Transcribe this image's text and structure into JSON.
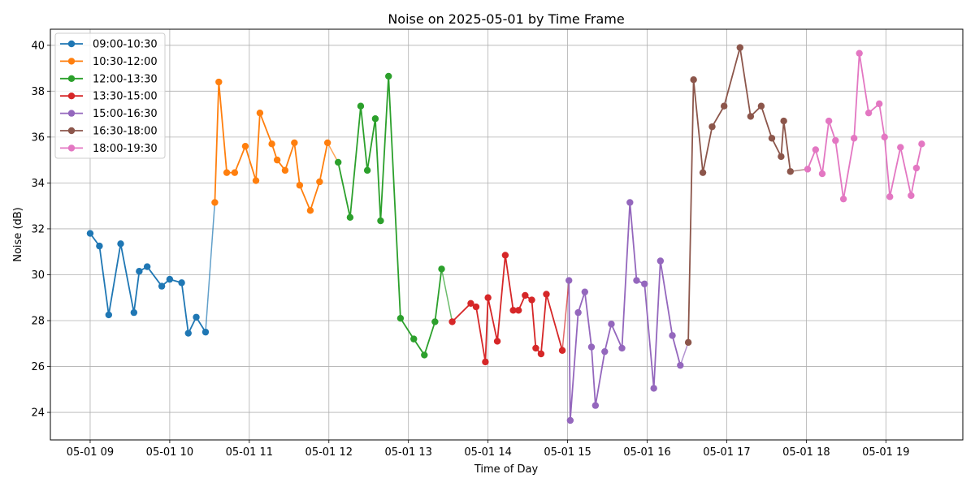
{
  "chart_data": {
    "type": "line",
    "title": "Noise on 2025-05-01 by Time Frame",
    "xlabel": "Time of Day",
    "ylabel": "Noise (dB)",
    "xlim": [
      "2025-05-01 08:30",
      "2025-05-01 19:58"
    ],
    "ylim": [
      22.8,
      40.7
    ],
    "x_ticks": [
      {
        "value": "2025-05-01 09:00",
        "label": "05-01 09"
      },
      {
        "value": "2025-05-01 10:00",
        "label": "05-01 10"
      },
      {
        "value": "2025-05-01 11:00",
        "label": "05-01 11"
      },
      {
        "value": "2025-05-01 12:00",
        "label": "05-01 12"
      },
      {
        "value": "2025-05-01 13:00",
        "label": "05-01 13"
      },
      {
        "value": "2025-05-01 14:00",
        "label": "05-01 14"
      },
      {
        "value": "2025-05-01 15:00",
        "label": "05-01 15"
      },
      {
        "value": "2025-05-01 16:00",
        "label": "05-01 16"
      },
      {
        "value": "2025-05-01 17:00",
        "label": "05-01 17"
      },
      {
        "value": "2025-05-01 18:00",
        "label": "05-01 18"
      },
      {
        "value": "2025-05-01 19:00",
        "label": "05-01 19"
      }
    ],
    "y_ticks": [
      24,
      26,
      28,
      30,
      32,
      34,
      36,
      38,
      40
    ],
    "grid": true,
    "legend_position": "top-left",
    "series": [
      {
        "name": "09:00-10:30",
        "color": "#1f77b4",
        "points": [
          [
            "09:00",
            31.8
          ],
          [
            "09:07",
            31.25
          ],
          [
            "09:14",
            28.25
          ],
          [
            "09:23",
            31.35
          ],
          [
            "09:33",
            28.35
          ],
          [
            "09:37",
            30.15
          ],
          [
            "09:43",
            30.35
          ],
          [
            "09:54",
            29.5
          ],
          [
            "10:00",
            29.8
          ],
          [
            "10:09",
            29.65
          ],
          [
            "10:14",
            27.45
          ],
          [
            "10:20",
            28.15
          ],
          [
            "10:27",
            27.5
          ]
        ]
      },
      {
        "name": "10:30-12:00",
        "color": "#ff7f0e",
        "points": [
          [
            "10:34",
            33.15
          ],
          [
            "10:37",
            38.4
          ],
          [
            "10:43",
            34.45
          ],
          [
            "10:49",
            34.45
          ],
          [
            "10:57",
            35.6
          ],
          [
            "11:05",
            34.1
          ],
          [
            "11:08",
            37.05
          ],
          [
            "11:17",
            35.7
          ],
          [
            "11:21",
            35.0
          ],
          [
            "11:27",
            34.55
          ],
          [
            "11:34",
            35.75
          ],
          [
            "11:38",
            33.9
          ],
          [
            "11:46",
            32.8
          ],
          [
            "11:53",
            34.05
          ],
          [
            "11:59",
            35.75
          ]
        ]
      },
      {
        "name": "12:00-13:30",
        "color": "#2ca02c",
        "points": [
          [
            "12:07",
            34.9
          ],
          [
            "12:16",
            32.5
          ],
          [
            "12:24",
            37.35
          ],
          [
            "12:29",
            34.55
          ],
          [
            "12:35",
            36.8
          ],
          [
            "12:39",
            32.35
          ],
          [
            "12:45",
            38.65
          ],
          [
            "12:54",
            28.1
          ],
          [
            "13:04",
            27.2
          ],
          [
            "13:12",
            26.5
          ],
          [
            "13:20",
            27.95
          ],
          [
            "13:25",
            30.25
          ]
        ]
      },
      {
        "name": "13:30-15:00",
        "color": "#d62728",
        "points": [
          [
            "13:33",
            27.95
          ],
          [
            "13:47",
            28.75
          ],
          [
            "13:51",
            28.6
          ],
          [
            "13:58",
            26.2
          ],
          [
            "14:00",
            29.0
          ],
          [
            "14:07",
            27.1
          ],
          [
            "14:13",
            30.85
          ],
          [
            "14:19",
            28.45
          ],
          [
            "14:23",
            28.45
          ],
          [
            "14:28",
            29.1
          ],
          [
            "14:33",
            28.9
          ],
          [
            "14:36",
            26.8
          ],
          [
            "14:40",
            26.55
          ],
          [
            "14:44",
            29.15
          ],
          [
            "14:56",
            26.7
          ]
        ]
      },
      {
        "name": "15:00-16:30",
        "color": "#9467bd",
        "points": [
          [
            "15:01",
            29.75
          ],
          [
            "15:02",
            23.65
          ],
          [
            "15:08",
            28.35
          ],
          [
            "15:13",
            29.25
          ],
          [
            "15:18",
            26.85
          ],
          [
            "15:21",
            24.3
          ],
          [
            "15:28",
            26.65
          ],
          [
            "15:33",
            27.85
          ],
          [
            "15:41",
            26.8
          ],
          [
            "15:47",
            33.15
          ],
          [
            "15:52",
            29.75
          ],
          [
            "15:58",
            29.6
          ],
          [
            "16:05",
            25.05
          ],
          [
            "16:10",
            30.6
          ],
          [
            "16:19",
            27.35
          ],
          [
            "16:25",
            26.05
          ]
        ]
      },
      {
        "name": "16:30-18:00",
        "color": "#8c564b",
        "points": [
          [
            "16:31",
            27.05
          ],
          [
            "16:35",
            38.5
          ],
          [
            "16:42",
            34.45
          ],
          [
            "16:49",
            36.45
          ],
          [
            "16:58",
            37.35
          ],
          [
            "17:10",
            39.9
          ],
          [
            "17:18",
            36.9
          ],
          [
            "17:26",
            37.35
          ],
          [
            "17:34",
            35.95
          ],
          [
            "17:41",
            35.15
          ],
          [
            "17:43",
            36.7
          ],
          [
            "17:48",
            34.5
          ]
        ]
      },
      {
        "name": "18:00-19:30",
        "color": "#e377c2",
        "points": [
          [
            "18:01",
            34.6
          ],
          [
            "18:07",
            35.45
          ],
          [
            "18:12",
            34.4
          ],
          [
            "18:17",
            36.7
          ],
          [
            "18:22",
            35.85
          ],
          [
            "18:28",
            33.3
          ],
          [
            "18:36",
            35.95
          ],
          [
            "18:40",
            39.65
          ],
          [
            "18:47",
            37.05
          ],
          [
            "18:55",
            37.45
          ],
          [
            "18:59",
            36.0
          ],
          [
            "19:03",
            33.4
          ],
          [
            "19:11",
            35.55
          ],
          [
            "19:19",
            33.45
          ],
          [
            "19:23",
            34.65
          ],
          [
            "19:27",
            35.7
          ]
        ]
      }
    ],
    "connector_color": "#1f77b4"
  }
}
